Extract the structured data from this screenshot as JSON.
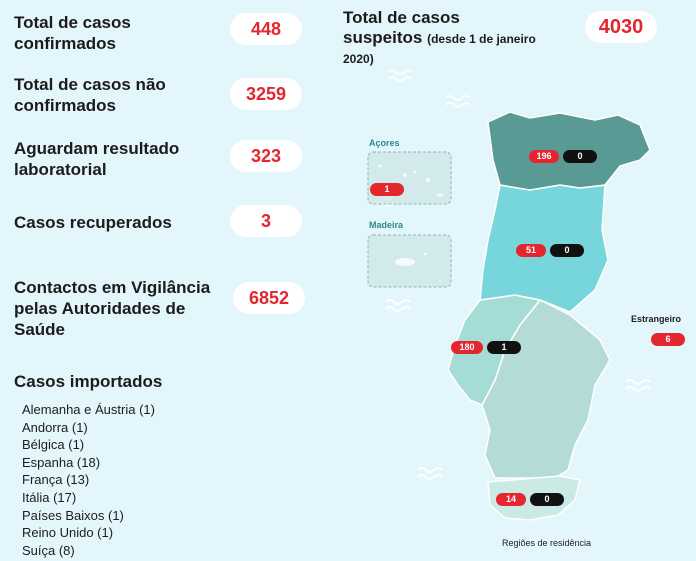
{
  "stats": {
    "confirmed": {
      "label_line1": "Total de casos",
      "label_line2": "confirmados",
      "value": "448"
    },
    "not_confirmed": {
      "label_line1": "Total de casos não",
      "label_line2": "confirmados",
      "value": "3259"
    },
    "awaiting": {
      "label_line1": "Aguardam resultado",
      "label_line2": "laboratorial",
      "value": "323"
    },
    "recovered": {
      "label": "Casos recuperados",
      "value": "3"
    },
    "surveillance": {
      "label_line1": "Contactos em Vigilância",
      "label_line2": "pelas Autoridades de",
      "label_line3": "Saúde",
      "value": "6852"
    }
  },
  "suspect": {
    "line1": "Total de casos",
    "line2": "suspeitos",
    "sub": "(desde 1 de janeiro",
    "sub2": "2020)",
    "value": "4030"
  },
  "imported": {
    "title": "Casos importados",
    "items": [
      "Alemanha e Áustria (1)",
      "Andorra (1)",
      "Bélgica (1)",
      "Espanha (18)",
      "França (13)",
      "Itália (17)",
      "Países Baixos (1)",
      "Reino Unido (1)",
      "Suíça (8)"
    ]
  },
  "map": {
    "acores_label": "Açores",
    "madeira_label": "Madeira",
    "estrangeiro_label": "Estrangeiro",
    "legend": "Regiões de residência",
    "regions": {
      "norte": {
        "confirmed": "196",
        "deaths": "0"
      },
      "centro": {
        "confirmed": "51",
        "deaths": "0"
      },
      "lisboa": {
        "confirmed": "180",
        "deaths": "1"
      },
      "algarve": {
        "confirmed": "14",
        "deaths": "0"
      },
      "acores": {
        "confirmed": "1"
      },
      "estrangeiro": {
        "confirmed": "6"
      }
    },
    "colors": {
      "norte": "#5a9a94",
      "centro": "#77d6dc",
      "lisboa": "#a6dcd6",
      "alentejo": "#b5dbd7",
      "algarve": "#cbe9e5",
      "islands": "#c6e3e1"
    }
  }
}
